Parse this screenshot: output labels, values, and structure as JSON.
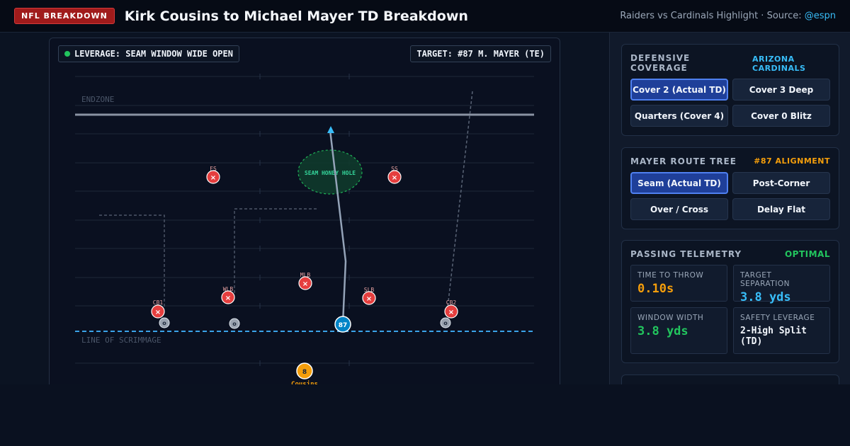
{
  "header": {
    "badge": "NFL BREAKDOWN",
    "title": "Kirk Cousins to Michael Mayer TD Breakdown",
    "source_prefix": "Raiders vs Cardinals Highlight · Source: ",
    "source_handle": "@espn"
  },
  "field": {
    "leverage_chip": "LEVERAGE: SEAM WINDOW WIDE OPEN",
    "target_chip": "TARGET: #87 M. MAYER (TE)",
    "endzone_label": "ENDZONE",
    "los_label": "LINE OF SCRIMMAGE",
    "zone_label": "SEAM HONEY HOLE",
    "defenders": [
      {
        "label": "FS",
        "mark": "×"
      },
      {
        "label": "SS",
        "mark": "×"
      },
      {
        "label": "MLB",
        "mark": "×"
      },
      {
        "label": "WLB",
        "mark": "×"
      },
      {
        "label": "SLB",
        "mark": "×"
      },
      {
        "label": "CB1",
        "mark": "×"
      },
      {
        "label": "CB2",
        "mark": "×"
      }
    ],
    "offense": {
      "receiver_number": "87",
      "qb_number": "8",
      "qb_name": "Cousins",
      "blocker_mark": "o"
    }
  },
  "coverage": {
    "title": "DEFENSIVE COVERAGE",
    "tag": "ARIZONA CARDINALS",
    "tag_color": "#38bdf8",
    "options": [
      {
        "label": "Cover 2 (Actual TD)",
        "active": true
      },
      {
        "label": "Cover 3 Deep",
        "active": false
      },
      {
        "label": "Quarters (Cover 4)",
        "active": false
      },
      {
        "label": "Cover 0 Blitz",
        "active": false
      }
    ]
  },
  "route": {
    "title": "MAYER ROUTE TREE",
    "tag": "#87 ALIGNMENT",
    "tag_color": "#f59e0b",
    "options": [
      {
        "label": "Seam (Actual TD)",
        "active": true
      },
      {
        "label": "Post-Corner",
        "active": false
      },
      {
        "label": "Over / Cross",
        "active": false
      },
      {
        "label": "Delay Flat",
        "active": false
      }
    ]
  },
  "telemetry": {
    "title": "PASSING TELEMETRY",
    "status": "OPTIMAL",
    "status_color": "#22c55e",
    "metrics": [
      {
        "label": "TIME TO THROW",
        "value": "0.10s",
        "color": "#f59e0b"
      },
      {
        "label": "TARGET SEPARATION",
        "value": "3.8 yds",
        "color": "#38bdf8"
      },
      {
        "label": "WINDOW WIDTH",
        "value": "3.8 yds",
        "color": "#22c55e"
      },
      {
        "label": "SAFETY LEVERAGE",
        "value": "2-High Split (TD)",
        "color": "#f1f5fb"
      }
    ]
  }
}
